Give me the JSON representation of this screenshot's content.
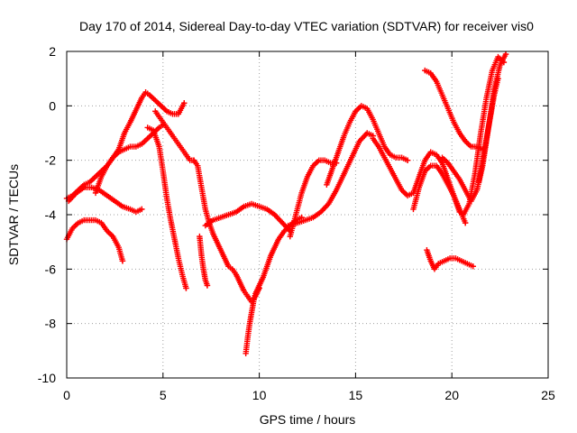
{
  "chart_data": {
    "type": "scatter",
    "title": "Day 170 of 2014, Sidereal Day-to-day VTEC variation (SDTVAR) for receiver vis0",
    "xlabel": "GPS time / hours",
    "ylabel": "SDTVAR / TECUs",
    "xlim": [
      0,
      25
    ],
    "ylim": [
      -10,
      2
    ],
    "xticks": [
      "0",
      "5",
      "10",
      "15",
      "20",
      "25"
    ],
    "yticks": [
      "-10",
      "-8",
      "-6",
      "-4",
      "-2",
      "0",
      "2"
    ],
    "grid": true,
    "marker": "plus",
    "color": "#ff0000",
    "series": [
      {
        "x": [
          0.0,
          0.3,
          0.6,
          0.9,
          1.2,
          1.5,
          1.8,
          2.1,
          2.4,
          2.7,
          3.0,
          3.3,
          3.5,
          3.7,
          3.9,
          4.1,
          4.3,
          4.6,
          4.9,
          5.2,
          5.5,
          5.8,
          6.1
        ],
        "y": [
          -3.4,
          -3.3,
          -3.1,
          -2.9,
          -2.8,
          -2.6,
          -2.4,
          -2.2,
          -1.9,
          -1.6,
          -1.0,
          -0.6,
          -0.3,
          0.0,
          0.3,
          0.5,
          0.4,
          0.2,
          0.0,
          -0.2,
          -0.3,
          -0.3,
          0.1
        ]
      },
      {
        "x": [
          0.0,
          0.3,
          0.6,
          0.9,
          1.2,
          1.5,
          1.8,
          2.1,
          2.4,
          2.7,
          2.9
        ],
        "y": [
          -4.9,
          -4.5,
          -4.3,
          -4.2,
          -4.2,
          -4.2,
          -4.3,
          -4.6,
          -4.8,
          -5.2,
          -5.7
        ]
      },
      {
        "x": [
          0.1,
          0.5,
          0.9,
          1.3,
          1.7,
          2.1,
          2.5,
          2.9,
          3.3,
          3.6,
          3.9
        ],
        "y": [
          -3.5,
          -3.2,
          -3.0,
          -3.0,
          -3.1,
          -3.3,
          -3.5,
          -3.7,
          -3.8,
          -3.9,
          -3.8
        ]
      },
      {
        "x": [
          1.5,
          1.8,
          2.1,
          2.4,
          2.7,
          3.0,
          3.3,
          3.6,
          3.9,
          4.2,
          4.5,
          4.8,
          5.0
        ],
        "y": [
          -3.2,
          -2.6,
          -2.2,
          -1.9,
          -1.7,
          -1.6,
          -1.5,
          -1.5,
          -1.4,
          -1.2,
          -1.0,
          -0.8,
          -0.7
        ]
      },
      {
        "x": [
          4.2,
          4.5,
          4.8,
          5.0,
          5.2,
          5.4,
          5.6,
          5.8,
          6.0,
          6.2
        ],
        "y": [
          -0.8,
          -0.9,
          -1.5,
          -2.4,
          -3.4,
          -4.2,
          -4.9,
          -5.6,
          -6.2,
          -6.7
        ]
      },
      {
        "x": [
          4.6,
          4.8,
          5.0,
          5.2,
          5.4,
          5.6,
          5.8,
          6.0,
          6.2,
          6.4,
          6.6
        ],
        "y": [
          -0.2,
          -0.4,
          -0.6,
          -0.8,
          -1.0,
          -1.2,
          -1.4,
          -1.6,
          -1.8,
          -2.0,
          -2.0
        ]
      },
      {
        "x": [
          6.6,
          6.8,
          7.0,
          7.2,
          7.4,
          7.6,
          7.8,
          8.0,
          8.2,
          8.4,
          8.6,
          8.8,
          9.0,
          9.2,
          9.4,
          9.6,
          9.8,
          10.0
        ],
        "y": [
          -2.0,
          -2.2,
          -3.0,
          -3.8,
          -4.3,
          -4.7,
          -5.0,
          -5.3,
          -5.6,
          -5.9,
          -6.0,
          -6.2,
          -6.5,
          -6.8,
          -7.0,
          -7.2,
          -7.0,
          -6.7
        ]
      },
      {
        "x": [
          6.9,
          7.0,
          7.1,
          7.2,
          7.3
        ],
        "y": [
          -4.8,
          -5.5,
          -6.0,
          -6.4,
          -6.6
        ]
      },
      {
        "x": [
          7.2,
          7.6,
          8.0,
          8.4,
          8.8,
          9.2,
          9.6,
          10.0,
          10.4,
          10.8,
          11.2,
          11.6
        ],
        "y": [
          -4.4,
          -4.2,
          -4.1,
          -4.0,
          -3.9,
          -3.7,
          -3.6,
          -3.7,
          -3.8,
          -4.0,
          -4.3,
          -4.6
        ]
      },
      {
        "x": [
          9.3,
          9.4,
          9.5,
          9.6,
          9.7,
          9.8,
          10.0,
          10.2,
          10.4,
          10.6,
          10.8,
          11.0,
          11.3,
          11.6,
          11.9,
          12.2
        ],
        "y": [
          -9.1,
          -8.5,
          -8.0,
          -7.6,
          -7.2,
          -6.9,
          -6.6,
          -6.3,
          -5.9,
          -5.5,
          -5.2,
          -4.9,
          -4.6,
          -4.4,
          -4.2,
          -4.1
        ]
      },
      {
        "x": [
          11.5,
          12.0,
          12.4,
          12.8,
          13.2,
          13.6,
          14.0,
          14.4,
          14.8,
          15.2,
          15.6,
          15.9
        ],
        "y": [
          -4.4,
          -4.3,
          -4.2,
          -4.1,
          -3.9,
          -3.6,
          -3.1,
          -2.5,
          -1.9,
          -1.3,
          -1.0,
          -1.1
        ]
      },
      {
        "x": [
          11.6,
          11.9,
          12.2,
          12.5,
          12.8,
          13.1,
          13.4,
          13.7,
          14.0
        ],
        "y": [
          -4.8,
          -4.0,
          -3.2,
          -2.6,
          -2.2,
          -2.0,
          -2.0,
          -2.1,
          -2.1
        ]
      },
      {
        "x": [
          13.5,
          13.8,
          14.1,
          14.4,
          14.7,
          15.0,
          15.3,
          15.6,
          15.9,
          16.2,
          16.5,
          16.8,
          17.1,
          17.4,
          17.7
        ],
        "y": [
          -2.9,
          -2.3,
          -1.7,
          -1.1,
          -0.6,
          -0.2,
          0.0,
          -0.1,
          -0.5,
          -1.0,
          -1.5,
          -1.8,
          -1.9,
          -1.9,
          -2.0
        ]
      },
      {
        "x": [
          15.9,
          16.2,
          16.5,
          16.8,
          17.1,
          17.4,
          17.7,
          18.0,
          18.3,
          18.6,
          18.9,
          19.2,
          19.5,
          19.8,
          20.1,
          20.4
        ],
        "y": [
          -1.2,
          -1.5,
          -1.9,
          -2.3,
          -2.7,
          -3.1,
          -3.3,
          -3.2,
          -2.6,
          -2.0,
          -1.7,
          -1.8,
          -2.1,
          -2.7,
          -3.3,
          -3.9
        ]
      },
      {
        "x": [
          18.0,
          18.3,
          18.6,
          18.9,
          19.2,
          19.5,
          19.8,
          20.1,
          20.4,
          20.7
        ],
        "y": [
          -3.8,
          -3.0,
          -2.4,
          -2.2,
          -2.2,
          -2.5,
          -2.9,
          -3.3,
          -3.8,
          -4.3
        ]
      },
      {
        "x": [
          18.7,
          18.9,
          19.1,
          19.3,
          19.6,
          19.9,
          20.2,
          20.5,
          20.8,
          21.1
        ],
        "y": [
          -5.3,
          -5.7,
          -6.0,
          -5.8,
          -5.7,
          -5.6,
          -5.6,
          -5.7,
          -5.8,
          -5.9
        ]
      },
      {
        "x": [
          18.6,
          18.9,
          19.2,
          19.5,
          19.8,
          20.1,
          20.4,
          20.7,
          21.0,
          21.3,
          21.6
        ],
        "y": [
          1.3,
          1.2,
          0.9,
          0.4,
          -0.1,
          -0.6,
          -1.0,
          -1.3,
          -1.5,
          -1.5,
          -1.6
        ]
      },
      {
        "x": [
          19.5,
          19.8,
          20.1,
          20.4,
          20.7,
          21.0,
          21.3,
          21.6,
          21.9,
          22.2,
          22.5,
          22.8
        ],
        "y": [
          -1.9,
          -2.1,
          -2.4,
          -2.7,
          -3.1,
          -3.5,
          -3.1,
          -2.2,
          -0.8,
          0.6,
          1.5,
          1.9
        ]
      },
      {
        "x": [
          20.6,
          20.9,
          21.2,
          21.5,
          21.8,
          22.1,
          22.4,
          22.7
        ],
        "y": [
          -4.0,
          -3.6,
          -2.5,
          -1.0,
          0.3,
          1.3,
          1.8,
          1.6
        ]
      },
      {
        "x": [
          21.4,
          21.6,
          21.8,
          22.0,
          22.2,
          22.4
        ],
        "y": [
          -2.8,
          -2.0,
          -1.2,
          -0.4,
          0.4,
          1.0
        ]
      }
    ]
  }
}
